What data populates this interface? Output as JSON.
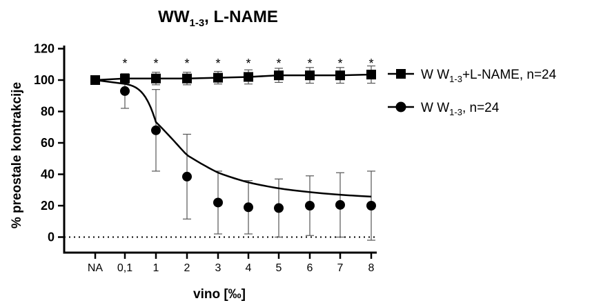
{
  "chart_data": {
    "type": "line",
    "title": {
      "main": "WW",
      "sub": "1-3",
      "rest": ", L-NAME"
    },
    "xlabel": "vino [‰]",
    "ylabel": "% preostale kontrakcije",
    "categories": [
      "NA",
      "0,1",
      "1",
      "2",
      "3",
      "4",
      "5",
      "6",
      "7",
      "8"
    ],
    "yticks": [
      "0",
      "20",
      "40",
      "60",
      "80",
      "100",
      "120"
    ],
    "ylim": [
      0,
      120
    ],
    "baseline_y": 0,
    "significance_marker": "*",
    "series": [
      {
        "name_main": "W W",
        "name_sub": "1-3",
        "name_rest": "+L-NAME, n=24",
        "marker": "square",
        "values": [
          100,
          101,
          101,
          101,
          101.5,
          102,
          103,
          103,
          103,
          103.5
        ],
        "errors": [
          0,
          3,
          4,
          4,
          4,
          4.5,
          4.5,
          5,
          5,
          5.5
        ],
        "significant": [
          false,
          true,
          true,
          true,
          true,
          true,
          true,
          true,
          true,
          true
        ]
      },
      {
        "name_main": "W W",
        "name_sub": "1-3",
        "name_rest": ", n=24",
        "marker": "circle",
        "values": [
          100,
          93,
          68,
          38.5,
          22,
          19,
          18.5,
          20,
          20.5,
          20
        ],
        "errors": [
          0,
          11,
          26,
          27,
          20,
          17,
          18.5,
          19,
          20.5,
          22
        ]
      }
    ],
    "fit_curve": {
      "top": 98.5,
      "bottom": 20.3,
      "ec50_log10": 0.2,
      "hill": -1.6
    }
  }
}
